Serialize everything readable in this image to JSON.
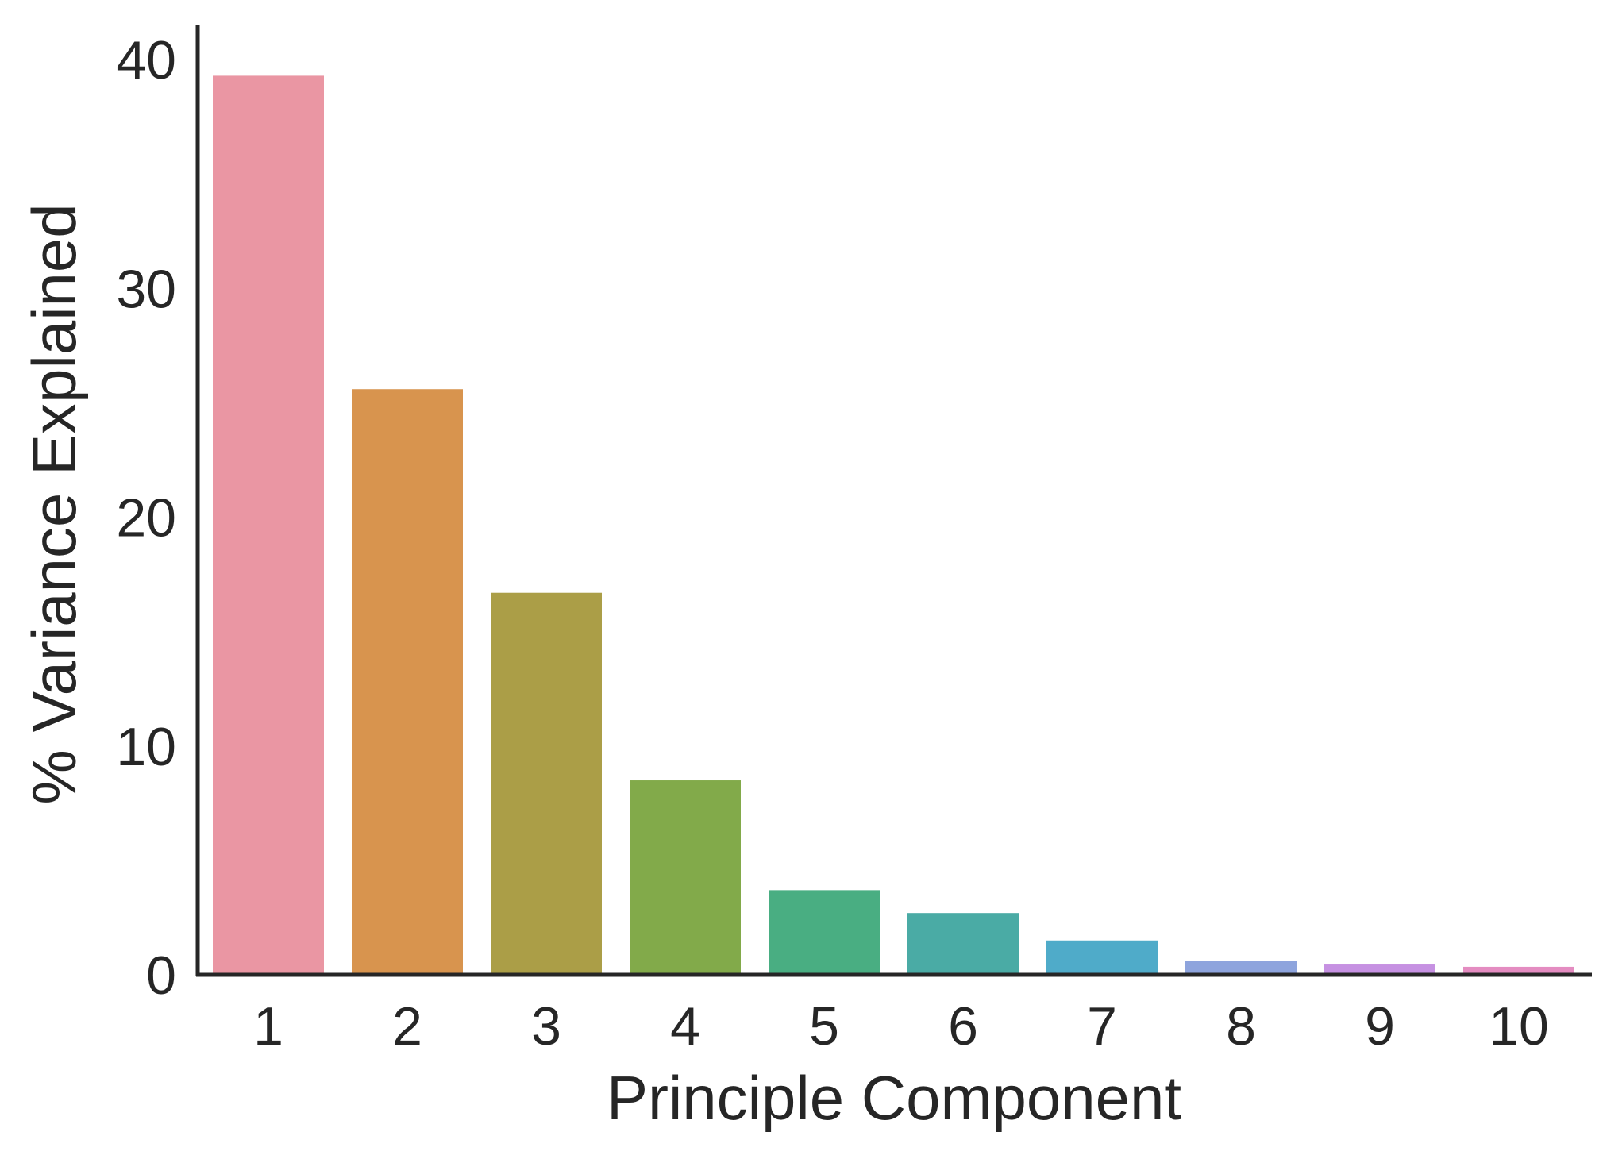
{
  "chart_data": {
    "type": "bar",
    "title": "",
    "xlabel": "Principle Component",
    "ylabel": "% Variance Explained",
    "categories": [
      "1",
      "2",
      "3",
      "4",
      "5",
      "6",
      "7",
      "8",
      "9",
      "10"
    ],
    "values": [
      39.3,
      25.6,
      16.7,
      8.5,
      3.7,
      2.7,
      1.5,
      0.6,
      0.45,
      0.35
    ],
    "colors": [
      "#ea96a3",
      "#d8944e",
      "#ab9e47",
      "#82aa4a",
      "#49ae82",
      "#4aaba5",
      "#4fabc9",
      "#8ea4dd",
      "#c691e2",
      "#e48cc1"
    ],
    "ylim": [
      0,
      41.5
    ],
    "yticks": [
      0,
      10,
      20,
      30,
      40
    ],
    "grid": false,
    "legend": "none"
  }
}
